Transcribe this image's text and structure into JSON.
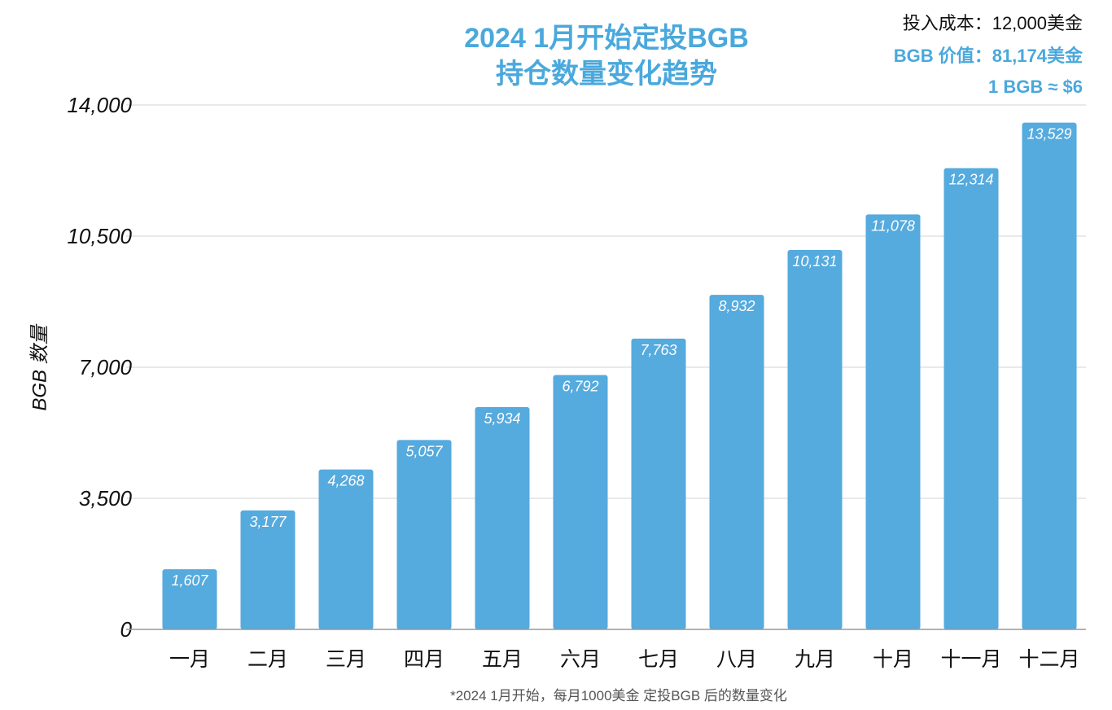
{
  "chart_data": {
    "type": "bar",
    "title": "2024 1月开始定投BGB",
    "subtitle": "持仓数量变化趋势",
    "ylabel": "BGB 数量",
    "xlabel": "",
    "categories": [
      "一月",
      "二月",
      "三月",
      "四月",
      "五月",
      "六月",
      "七月",
      "八月",
      "九月",
      "十月",
      "十一月",
      "十二月"
    ],
    "values": [
      1607,
      3177,
      4268,
      5057,
      5934,
      6792,
      7763,
      8932,
      10131,
      11078,
      12314,
      13529
    ],
    "value_labels": [
      "1,607",
      "3,177",
      "4,268",
      "5,057",
      "5,934",
      "6,792",
      "7,763",
      "8,932",
      "10,131",
      "11,078",
      "12,314",
      "13,529"
    ],
    "ylim": [
      0,
      14000
    ],
    "yticks": [
      0,
      3500,
      7000,
      10500,
      14000
    ],
    "ytick_labels": [
      "0",
      "3,500",
      "7,000",
      "10,500",
      "14,000"
    ],
    "grid": true,
    "legend": "none",
    "bar_color": "#55aade",
    "annotations": {
      "cost": "投入成本：12,000美金",
      "value": "BGB 价值：81,174美金",
      "price": "1 BGB ≈ $6"
    },
    "footnote": "*2024 1月开始，每月1000美金 定投BGB 后的数量变化"
  },
  "colors": {
    "accent": "#4aa8dc",
    "bar": "#55aade",
    "grid": "#d3d3d3",
    "axis": "#999999"
  }
}
